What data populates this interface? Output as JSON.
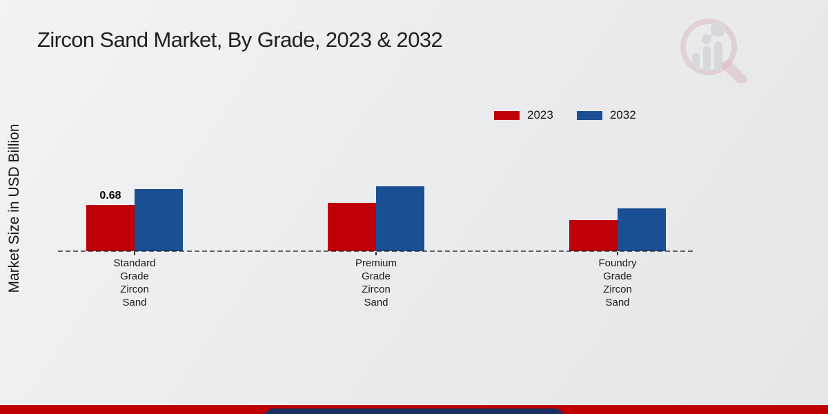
{
  "page": {
    "title": "Zircon Sand Market, By Grade, 2023 & 2032",
    "y_axis_label": "Market Size in USD Billion",
    "logo_icon": "magnifier-bar-chart-watermark-icon"
  },
  "chart_data": {
    "type": "bar",
    "title": "Zircon Sand Market, By Grade, 2023 & 2032",
    "xlabel": "",
    "ylabel": "Market Size in USD Billion",
    "categories": [
      "Standard Grade Zircon Sand",
      "Premium Grade Zircon Sand",
      "Foundry Grade Zircon Sand"
    ],
    "series": [
      {
        "name": "2023",
        "color": "#c00009",
        "values": [
          0.68,
          0.71,
          0.46
        ]
      },
      {
        "name": "2032",
        "color": "#1b4f94",
        "values": [
          0.91,
          0.95,
          0.63
        ]
      }
    ],
    "data_labels": [
      {
        "series": "2023",
        "category_index": 0,
        "text": "0.68"
      }
    ],
    "ylim": [
      0,
      1.0
    ],
    "grid": false,
    "legend_position": "top-right",
    "baseline_style": "dashed"
  },
  "legend": {
    "items": [
      {
        "label": "2023",
        "color": "#c00009"
      },
      {
        "label": "2032",
        "color": "#1b4f94"
      }
    ]
  },
  "colors": {
    "background_start": "#f3f3f5",
    "background_end": "#e5e6e8",
    "bar_2023": "#c00009",
    "bar_2032": "#1b4f94",
    "footer_stripe": "#c00000",
    "footer_band": "#17305e",
    "title_text": "#1f1f1f",
    "axis_text": "#141414"
  }
}
